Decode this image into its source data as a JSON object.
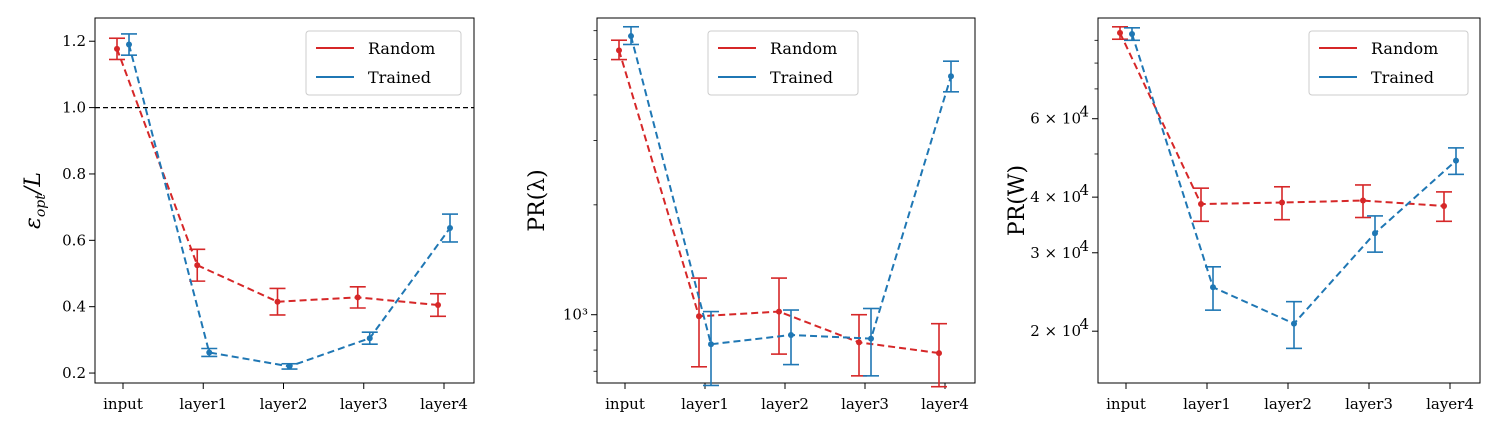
{
  "colors": {
    "random": "#d62728",
    "trained": "#1f77b4",
    "axis": "#000000",
    "reference": "#000000"
  },
  "chart_data": [
    {
      "type": "line",
      "title": "",
      "xlabel": "",
      "ylabel": "εopt/L",
      "ylabel_parts": {
        "main": "ε",
        "sub": "opt",
        "rest": "/L"
      },
      "yscale": "linear",
      "ylim": [
        0.17,
        1.27
      ],
      "yticks": [
        0.2,
        0.4,
        0.6,
        0.8,
        1.0,
        1.2
      ],
      "ytick_labels": [
        "0.2",
        "0.4",
        "0.6",
        "0.8",
        "1.0",
        "1.2"
      ],
      "yminor_ticks": [],
      "categories": [
        "input",
        "layer1",
        "layer2",
        "layer3",
        "layer4"
      ],
      "hline": 1.0,
      "legend": "top-right",
      "series": [
        {
          "name": "Random",
          "values": [
            1.177,
            0.525,
            0.415,
            0.428,
            0.405
          ],
          "err": [
            0.032,
            0.048,
            0.04,
            0.032,
            0.034
          ]
        },
        {
          "name": "Trained",
          "values": [
            1.19,
            0.262,
            0.22,
            0.305,
            0.637
          ],
          "err": [
            0.032,
            0.012,
            0.008,
            0.018,
            0.042
          ]
        }
      ]
    },
    {
      "type": "line",
      "title": "",
      "xlabel": "",
      "ylabel": "PR(λ)",
      "yscale": "log",
      "ylim": [
        650,
        6500
      ],
      "yticks": [
        1000
      ],
      "ytick_labels": [
        "10³"
      ],
      "yminor_ticks": [
        700,
        800,
        900,
        2000,
        3000,
        4000,
        5000,
        6000
      ],
      "categories": [
        "input",
        "layer1",
        "layer2",
        "layer3",
        "layer4"
      ],
      "legend": "top-center",
      "series": [
        {
          "name": "Random",
          "values": [
            5300,
            990,
            1020,
            840,
            785
          ],
          "err": [
            [
              300,
              350
            ],
            [
              270,
              270
            ],
            [
              240,
              240
            ],
            [
              160,
              160
            ],
            [
              150,
              160
            ]
          ]
        },
        {
          "name": "Trained",
          "values": [
            5800,
            830,
            880,
            860,
            4500
          ],
          "err": [
            [
              300,
              350
            ],
            [
              190,
              190
            ],
            [
              150,
              150
            ],
            [
              180,
              180
            ],
            [
              420,
              450
            ]
          ]
        }
      ]
    },
    {
      "type": "line",
      "title": "",
      "xlabel": "",
      "ylabel": "PR(W)",
      "yscale": "log",
      "ylim": [
        15300,
        101000
      ],
      "yticks": [
        20000,
        30000,
        40000,
        60000
      ],
      "ytick_labels": [
        "2 × 10",
        "3 × 10",
        "4 × 10",
        "6 × 10"
      ],
      "ytick_exponent": "4",
      "yminor_ticks": [
        50000,
        70000,
        80000,
        90000
      ],
      "categories": [
        "input",
        "layer1",
        "layer2",
        "layer3",
        "layer4"
      ],
      "legend": "top-right",
      "series": [
        {
          "name": "Random",
          "values": [
            93500,
            38600,
            38900,
            39300,
            38200
          ],
          "err": [
            3000,
            3300,
            3300,
            3300,
            2900
          ]
        },
        {
          "name": "Trained",
          "values": [
            93000,
            25100,
            20800,
            33200,
            48300
          ],
          "err": [
            3000,
            2800,
            2500,
            3100,
            3300
          ]
        }
      ]
    }
  ]
}
